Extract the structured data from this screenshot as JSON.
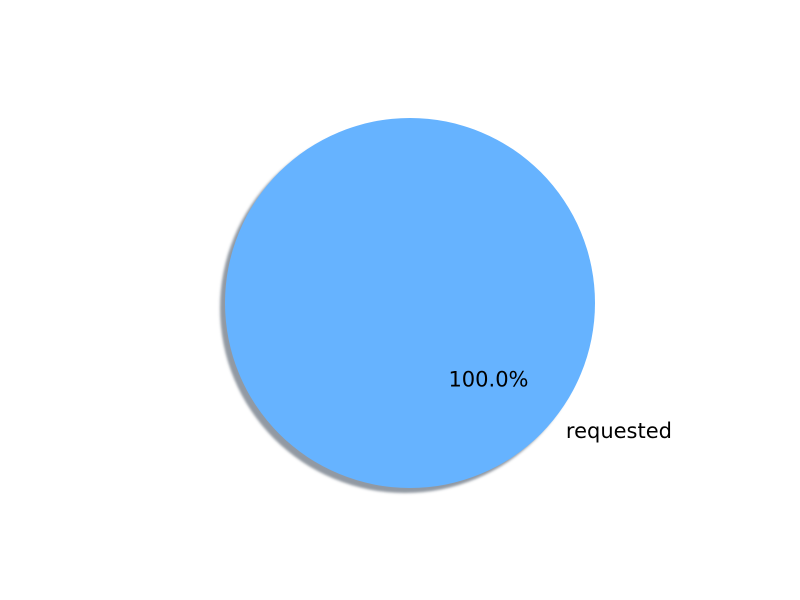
{
  "chart_data": {
    "type": "pie",
    "title": "",
    "categories": [
      "requested"
    ],
    "values": [
      100.0
    ],
    "percent_labels": [
      "100.0%"
    ],
    "colors": [
      "#66b3ff"
    ],
    "shadow": true,
    "legend": "none"
  }
}
